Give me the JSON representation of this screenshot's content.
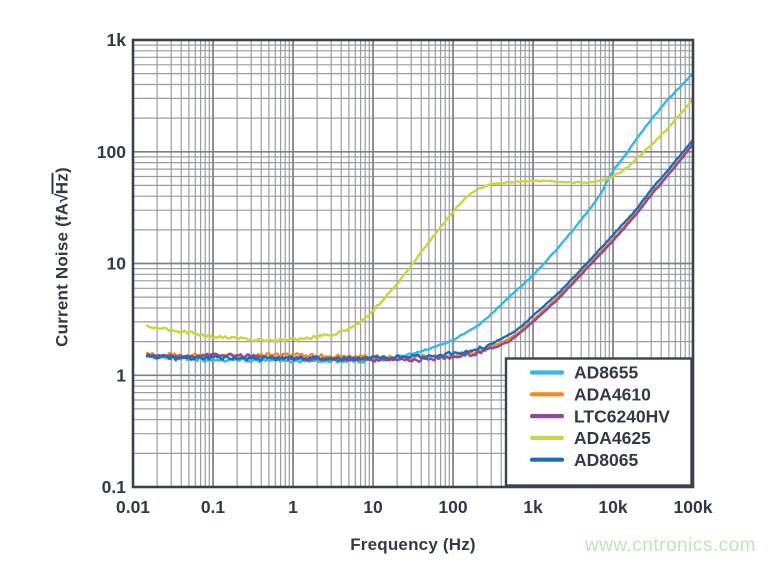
{
  "watermark": {
    "text": "www.cntronics.com",
    "color": "#bfe4ba"
  },
  "style": {
    "background": "#ffffff",
    "text_color": "#333948",
    "grid_minor_color": "#9a9ca4",
    "grid_major_color": "#7d7f87",
    "plot_border_color": "#3b4150",
    "legend_bg": "#ffffff",
    "legend_border": "#3b4150"
  },
  "chart_data": {
    "type": "line",
    "title": "",
    "xlabel": "Frequency (Hz)",
    "ylabel": {
      "pre": "Current Noise (fA",
      "sqrt": "√",
      "radicand": "Hz",
      "post": ")"
    },
    "x_scale": "log",
    "y_scale": "log",
    "xlim": [
      0.01,
      100000
    ],
    "ylim": [
      0.1,
      1000
    ],
    "grid": "log major+minor, on",
    "legend_position": "bottom-right inside plot",
    "x_ticks": [
      {
        "v": 0.01,
        "label": "0.01"
      },
      {
        "v": 0.1,
        "label": "0.1"
      },
      {
        "v": 1,
        "label": "1"
      },
      {
        "v": 10,
        "label": "10"
      },
      {
        "v": 100,
        "label": "100"
      },
      {
        "v": 1000,
        "label": "1k"
      },
      {
        "v": 10000,
        "label": "10k"
      },
      {
        "v": 100000,
        "label": "100k"
      }
    ],
    "y_ticks": [
      {
        "v": 0.1,
        "label": "0.1"
      },
      {
        "v": 1,
        "label": "1"
      },
      {
        "v": 10,
        "label": "10"
      },
      {
        "v": 100,
        "label": "100"
      },
      {
        "v": 1000,
        "label": "1k"
      }
    ],
    "series": [
      {
        "name": "AD8655",
        "color": "#33b8e8",
        "noise_split_hz": 25,
        "noise_low": 0.02,
        "noise_high": 0.006,
        "points": [
          [
            0.015,
            1.5
          ],
          [
            0.03,
            1.42
          ],
          [
            0.07,
            1.38
          ],
          [
            0.15,
            1.36
          ],
          [
            0.5,
            1.35
          ],
          [
            2,
            1.34
          ],
          [
            8,
            1.35
          ],
          [
            15,
            1.4
          ],
          [
            30,
            1.55
          ],
          [
            50,
            1.72
          ],
          [
            100,
            2.05
          ],
          [
            200,
            2.75
          ],
          [
            300,
            3.5
          ],
          [
            500,
            5.0
          ],
          [
            700,
            6.2
          ],
          [
            1000,
            7.8
          ],
          [
            2000,
            13.5
          ],
          [
            3000,
            19
          ],
          [
            5000,
            30
          ],
          [
            7000,
            42
          ],
          [
            10000,
            68
          ],
          [
            15000,
            98
          ],
          [
            20000,
            132
          ],
          [
            30000,
            195
          ],
          [
            50000,
            300
          ],
          [
            100000,
            500
          ]
        ]
      },
      {
        "name": "ADA4610",
        "color": "#f28a1e",
        "noise_split_hz": 300,
        "noise_low": 0.02,
        "noise_high": 0.005,
        "points": [
          [
            0.015,
            1.55
          ],
          [
            0.04,
            1.5
          ],
          [
            0.1,
            1.52
          ],
          [
            0.3,
            1.5
          ],
          [
            1,
            1.52
          ],
          [
            3,
            1.48
          ],
          [
            10,
            1.45
          ],
          [
            30,
            1.44
          ],
          [
            100,
            1.5
          ],
          [
            200,
            1.62
          ],
          [
            300,
            1.78
          ],
          [
            500,
            2.1
          ],
          [
            700,
            2.5
          ],
          [
            1000,
            3.1
          ],
          [
            2000,
            4.9
          ],
          [
            3000,
            6.6
          ],
          [
            5000,
            9.8
          ],
          [
            10000,
            16.5
          ],
          [
            20000,
            29
          ],
          [
            30000,
            42
          ],
          [
            50000,
            64
          ],
          [
            100000,
            118
          ]
        ]
      },
      {
        "name": "LTC6240HV",
        "color": "#8e4a9c",
        "noise_split_hz": 300,
        "noise_low": 0.02,
        "noise_high": 0.005,
        "points": [
          [
            0.015,
            1.52
          ],
          [
            0.04,
            1.46
          ],
          [
            0.1,
            1.5
          ],
          [
            0.3,
            1.48
          ],
          [
            1,
            1.42
          ],
          [
            3,
            1.4
          ],
          [
            10,
            1.38
          ],
          [
            30,
            1.37
          ],
          [
            100,
            1.44
          ],
          [
            200,
            1.58
          ],
          [
            300,
            1.72
          ],
          [
            500,
            2.0
          ],
          [
            700,
            2.4
          ],
          [
            1000,
            3.0
          ],
          [
            2000,
            4.7
          ],
          [
            3000,
            6.4
          ],
          [
            5000,
            9.4
          ],
          [
            10000,
            16
          ],
          [
            20000,
            28
          ],
          [
            30000,
            41
          ],
          [
            50000,
            63
          ],
          [
            100000,
            116
          ]
        ]
      },
      {
        "name": "ADA4625",
        "color": "#cbd63e",
        "noise_split_hz": 12,
        "noise_low": 0.018,
        "noise_high": 0.007,
        "points": [
          [
            0.015,
            2.75
          ],
          [
            0.03,
            2.55
          ],
          [
            0.06,
            2.35
          ],
          [
            0.12,
            2.2
          ],
          [
            0.25,
            2.1
          ],
          [
            0.5,
            2.05
          ],
          [
            1,
            2.1
          ],
          [
            2,
            2.2
          ],
          [
            3,
            2.3
          ],
          [
            5,
            2.6
          ],
          [
            7,
            3.0
          ],
          [
            10,
            3.8
          ],
          [
            15,
            5.2
          ],
          [
            20,
            6.6
          ],
          [
            30,
            9.5
          ],
          [
            50,
            15.5
          ],
          [
            70,
            21
          ],
          [
            100,
            29
          ],
          [
            150,
            40
          ],
          [
            200,
            46
          ],
          [
            300,
            51
          ],
          [
            500,
            53.5
          ],
          [
            700,
            54
          ],
          [
            1000,
            55
          ],
          [
            1500,
            54.5
          ],
          [
            2000,
            54
          ],
          [
            3000,
            53
          ],
          [
            5000,
            53.5
          ],
          [
            7000,
            55
          ],
          [
            10000,
            60
          ],
          [
            15000,
            72
          ],
          [
            20000,
            88
          ],
          [
            30000,
            115
          ],
          [
            50000,
            165
          ],
          [
            100000,
            295
          ]
        ]
      },
      {
        "name": "AD8065",
        "color": "#1b6eb6",
        "noise_split_hz": 300,
        "noise_low": 0.022,
        "noise_high": 0.005,
        "points": [
          [
            0.015,
            1.48
          ],
          [
            0.04,
            1.42
          ],
          [
            0.1,
            1.44
          ],
          [
            0.3,
            1.42
          ],
          [
            1,
            1.42
          ],
          [
            3,
            1.41
          ],
          [
            10,
            1.43
          ],
          [
            30,
            1.46
          ],
          [
            100,
            1.55
          ],
          [
            200,
            1.7
          ],
          [
            300,
            1.9
          ],
          [
            500,
            2.3
          ],
          [
            700,
            2.7
          ],
          [
            1000,
            3.4
          ],
          [
            2000,
            5.3
          ],
          [
            3000,
            7.1
          ],
          [
            5000,
            10.5
          ],
          [
            10000,
            18
          ],
          [
            20000,
            31
          ],
          [
            30000,
            46
          ],
          [
            50000,
            70
          ],
          [
            100000,
            128
          ]
        ]
      }
    ]
  }
}
